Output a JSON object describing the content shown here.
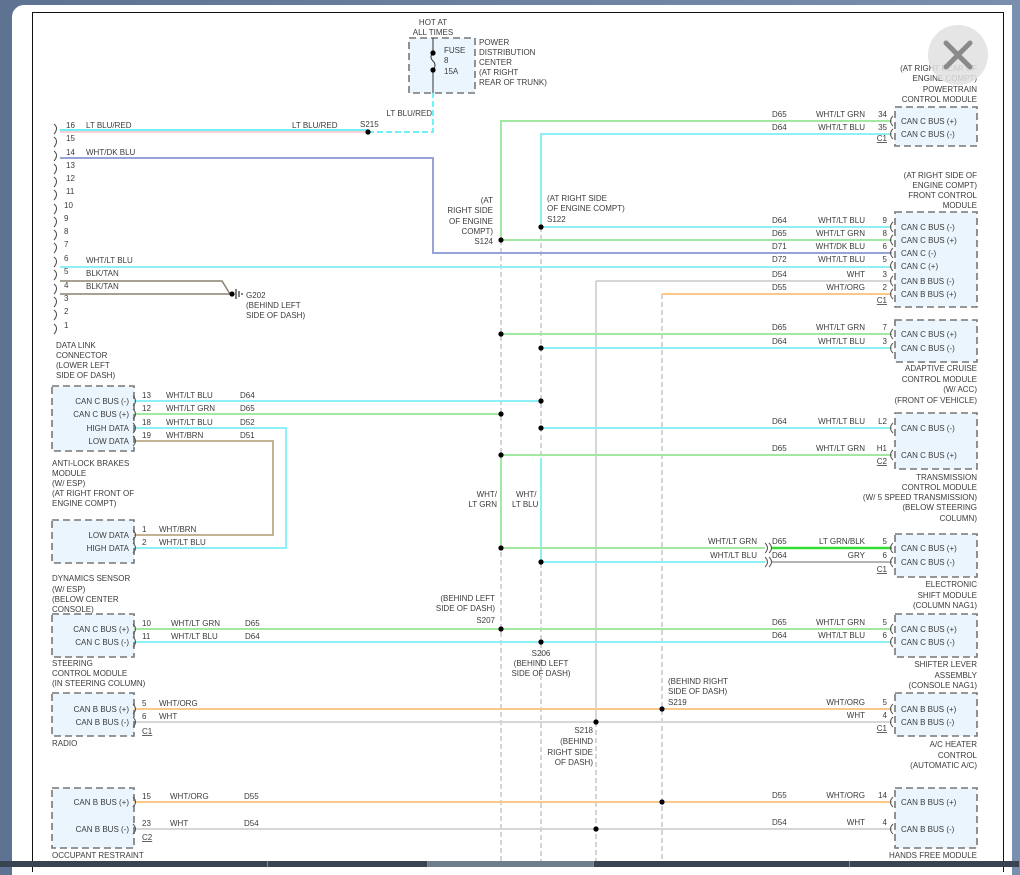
{
  "window": {
    "close_icon": "close-x-icon"
  },
  "wire_colors": {
    "WHT/LT GRN": "#a3e8a0",
    "WHT/LT BLU": "#8ef0f4",
    "WHT/DK BLU": "#97a3d6",
    "WHT": "#d6d6d6",
    "WHT/ORG": "#f9c88a",
    "WHT/BRN": "#c3b394",
    "BLK/TAN": "#8a8270",
    "LT BLU/RED": "#6ff0f8",
    "LT GRN/BLK": "#33dd33",
    "GRY": "#b4b4b4",
    "module_fill": "#eaf5fd"
  },
  "fuse": {
    "hot": [
      "HOT AT",
      "ALL TIMES"
    ],
    "label": [
      "FUSE",
      "8",
      "15A"
    ],
    "location": [
      "POWER",
      "DISTRIBUTION",
      "CENTER",
      "(AT RIGHT",
      "REAR OF TRUNK)"
    ],
    "wire_label": "LT BLU/RED"
  },
  "dlc": {
    "pins": [
      "16",
      "15",
      "14",
      "13",
      "12",
      "11",
      "10",
      "9",
      "8",
      "7",
      "6",
      "5",
      "4",
      "3",
      "2",
      "1"
    ],
    "wire_labels": {
      "p16": "LT BLU/RED",
      "p16_right": "LT BLU/RED",
      "p14": "WHT/DK BLU",
      "p6": "WHT/LT BLU",
      "p5": "BLK/TAN",
      "p4": "BLK/TAN"
    },
    "name": [
      "DATA LINK",
      "CONNECTOR",
      "(LOWER LEFT",
      "SIDE OF DASH)"
    ]
  },
  "ground": {
    "id": "G202",
    "location": [
      "(BEHIND LEFT",
      "SIDE OF DASH)"
    ]
  },
  "splices": {
    "s215": [
      "S215"
    ],
    "s124": [
      "(AT",
      "RIGHT SIDE",
      "OF ENGINE",
      "COMPT)",
      "S124"
    ],
    "s122": [
      "(AT RIGHT SIDE",
      "OF ENGINE COMPT)",
      "S122"
    ],
    "s207": [
      "(BEHIND LEFT",
      "SIDE OF DASH)",
      "S207"
    ],
    "s206": [
      "S206",
      "(BEHIND LEFT",
      "SIDE OF DASH)"
    ],
    "s219": [
      "(BEHIND RIGHT",
      "SIDE OF DASH)",
      "S219"
    ],
    "s218": [
      "S218",
      "(BEHIND",
      "RIGHT SIDE",
      "OF DASH)"
    ]
  },
  "vertical_labels": {
    "d65": [
      "WHT/",
      "LT GRN"
    ],
    "d64": [
      "WHT/",
      "LT BLU"
    ]
  },
  "right_modules": [
    {
      "name": [
        "(AT RIGHT REAR OF",
        "ENGINE COMPT)",
        "POWERTRAIN",
        "CONTROL MODULE"
      ],
      "connector": "C1",
      "pins": [
        {
          "pin": "34",
          "func": "CAN C BUS (+)",
          "circuit": "D65",
          "wire": "WHT/LT GRN"
        },
        {
          "pin": "35",
          "func": "CAN C BUS (-)",
          "circuit": "D64",
          "wire": "WHT/LT BLU"
        }
      ]
    },
    {
      "name": [
        "(AT RIGHT SIDE OF",
        "ENGINE COMPT)",
        "FRONT CONTROL",
        "MODULE"
      ],
      "connector": "C1",
      "pins": [
        {
          "pin": "9",
          "func": "CAN C BUS (-)",
          "circuit": "D64",
          "wire": "WHT/LT BLU"
        },
        {
          "pin": "8",
          "func": "CAN C BUS (+)",
          "circuit": "D65",
          "wire": "WHT/LT GRN"
        },
        {
          "pin": "6",
          "func": "CAN C (-)",
          "circuit": "D71",
          "wire": "WHT/DK BLU"
        },
        {
          "pin": "5",
          "func": "CAN C (+)",
          "circuit": "D72",
          "wire": "WHT/LT BLU"
        },
        {
          "pin": "3",
          "func": "CAN B BUS (-)",
          "circuit": "D54",
          "wire": "WHT"
        },
        {
          "pin": "2",
          "func": "CAN B BUS (+)",
          "circuit": "D55",
          "wire": "WHT/ORG"
        }
      ]
    },
    {
      "name": [
        "ADAPTIVE CRUISE",
        "CONTROL MODULE",
        "(W/ ACC)",
        "(FRONT OF VEHICLE)"
      ],
      "connector": "",
      "pins": [
        {
          "pin": "7",
          "func": "CAN C BUS (+)",
          "circuit": "D65",
          "wire": "WHT/LT GRN"
        },
        {
          "pin": "3",
          "func": "CAN C BUS (-)",
          "circuit": "D64",
          "wire": "WHT/LT BLU"
        }
      ]
    },
    {
      "name": [
        "TRANSMISSION",
        "CONTROL MODULE",
        "(W/ 5 SPEED TRANSMISSION)",
        "(BELOW STEERING",
        "COLUMN)"
      ],
      "connector": "C2",
      "pins": [
        {
          "pin": "L2",
          "func": "CAN C BUS (-)",
          "circuit": "D64",
          "wire": "WHT/LT BLU"
        },
        {
          "pin": "H1",
          "func": "CAN C BUS (+)",
          "circuit": "D65",
          "wire": "WHT/LT GRN"
        }
      ]
    },
    {
      "name": [
        "ELECTRONIC",
        "SHIFT MODULE",
        "(COLUMN NAG1)"
      ],
      "connector": "C1",
      "pins": [
        {
          "pin": "5",
          "func": "CAN C BUS (+)",
          "circuit": "D65",
          "wire": "LT GRN/BLK",
          "inline_wire": "WHT/LT GRN"
        },
        {
          "pin": "6",
          "func": "CAN C BUS (-)",
          "circuit": "D64",
          "wire": "GRY",
          "inline_wire": "WHT/LT BLU"
        }
      ]
    },
    {
      "name": [
        "SHIFTER LEVER",
        "ASSEMBLY",
        "(CONSOLE NAG1)"
      ],
      "connector": "",
      "pins": [
        {
          "pin": "5",
          "func": "CAN C BUS (+)",
          "circuit": "D65",
          "wire": "WHT/LT GRN"
        },
        {
          "pin": "6",
          "func": "CAN C BUS (-)",
          "circuit": "D64",
          "wire": "WHT/LT BLU"
        }
      ]
    },
    {
      "name": [
        "A/C HEATER",
        "CONTROL",
        "(AUTOMATIC A/C)"
      ],
      "connector": "C1",
      "pins": [
        {
          "pin": "5",
          "func": "CAN B BUS (+)",
          "circuit": "",
          "wire": "WHT/ORG"
        },
        {
          "pin": "4",
          "func": "CAN B BUS (-)",
          "circuit": "",
          "wire": "WHT"
        }
      ]
    },
    {
      "name": [
        "HANDS FREE MODULE"
      ],
      "connector": "",
      "pins": [
        {
          "pin": "14",
          "func": "CAN B BUS (+)",
          "circuit": "D55",
          "wire": "WHT/ORG"
        },
        {
          "pin": "4",
          "func": "CAN B BUS (-)",
          "circuit": "D54",
          "wire": "WHT"
        }
      ]
    }
  ],
  "left_modules": [
    {
      "name": [
        "ANTI-LOCK BRAKES",
        "MODULE",
        "(W/ ESP)",
        "(AT RIGHT FRONT OF",
        "ENGINE COMPT)"
      ],
      "connector": "",
      "pins": [
        {
          "pin": "13",
          "func": "CAN C BUS (-)",
          "circuit": "D64",
          "wire": "WHT/LT BLU"
        },
        {
          "pin": "12",
          "func": "CAN C BUS (+)",
          "circuit": "D65",
          "wire": "WHT/LT GRN"
        },
        {
          "pin": "18",
          "func": "HIGH DATA",
          "circuit": "D52",
          "wire": "WHT/LT BLU"
        },
        {
          "pin": "19",
          "func": "LOW DATA",
          "circuit": "D51",
          "wire": "WHT/BRN"
        }
      ]
    },
    {
      "name": [
        "DYNAMICS SENSOR",
        "(W/ ESP)",
        "(BELOW CENTER",
        "CONSOLE)"
      ],
      "connector": "",
      "pins": [
        {
          "pin": "1",
          "func": "LOW DATA",
          "circuit": "",
          "wire": "WHT/BRN"
        },
        {
          "pin": "2",
          "func": "HIGH DATA",
          "circuit": "",
          "wire": "WHT/LT BLU"
        }
      ]
    },
    {
      "name": [
        "STEERING",
        "CONTROL MODULE",
        "(IN STEERING COLUMN)"
      ],
      "connector": "",
      "pins": [
        {
          "pin": "10",
          "func": "CAN C BUS (+)",
          "circuit": "D65",
          "wire": "WHT/LT GRN"
        },
        {
          "pin": "11",
          "func": "CAN C BUS (-)",
          "circuit": "D64",
          "wire": "WHT/LT BLU"
        }
      ]
    },
    {
      "name": [
        "RADIO"
      ],
      "connector": "C1",
      "pins": [
        {
          "pin": "5",
          "func": "CAN B BUS (+)",
          "circuit": "",
          "wire": "WHT/ORG"
        },
        {
          "pin": "6",
          "func": "CAN B BUS (-)",
          "circuit": "",
          "wire": "WHT"
        }
      ]
    },
    {
      "name": [
        "OCCUPANT RESTRAINT",
        "CONTROLLER MODULE"
      ],
      "connector": "C2",
      "pins": [
        {
          "pin": "15",
          "func": "CAN B BUS (+)",
          "circuit": "D55",
          "wire": "WHT/ORG"
        },
        {
          "pin": "23",
          "func": "CAN B BUS (-)",
          "circuit": "D54",
          "wire": "WHT"
        }
      ]
    }
  ]
}
